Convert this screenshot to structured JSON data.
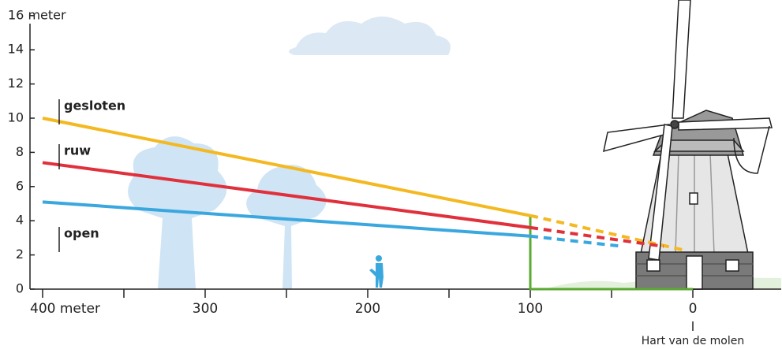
{
  "chart_data": {
    "type": "line",
    "xlim": [
      400,
      0
    ],
    "ylim": [
      0,
      16
    ],
    "xticks": [
      {
        "value": 400,
        "label": "400 meter"
      },
      300,
      200,
      100,
      0
    ],
    "xminor": [
      350,
      250,
      150,
      50
    ],
    "yticks": [
      0,
      2,
      4,
      6,
      8,
      10,
      12,
      14,
      {
        "value": 16,
        "label": "16 meter"
      }
    ],
    "annotation": "Hart van de molen",
    "series": [
      {
        "name": "gesloten",
        "color": "#f4b820",
        "x": [
          400,
          100,
          4
        ],
        "values": [
          10,
          4.3,
          2.25
        ],
        "dash_from_index": 1
      },
      {
        "name": "ruw",
        "color": "#e0303c",
        "x": [
          400,
          100,
          18
        ],
        "values": [
          7.4,
          3.6,
          2.5
        ],
        "dash_from_index": 1
      },
      {
        "name": "open",
        "color": "#3aa7df",
        "x": [
          400,
          100,
          43
        ],
        "values": [
          5.1,
          3.1,
          2.5
        ],
        "dash_from_index": 1
      }
    ],
    "boundary": {
      "color": "#5aaa32",
      "x": [
        100,
        100,
        0
      ],
      "values": [
        4.3,
        0,
        0
      ]
    }
  }
}
